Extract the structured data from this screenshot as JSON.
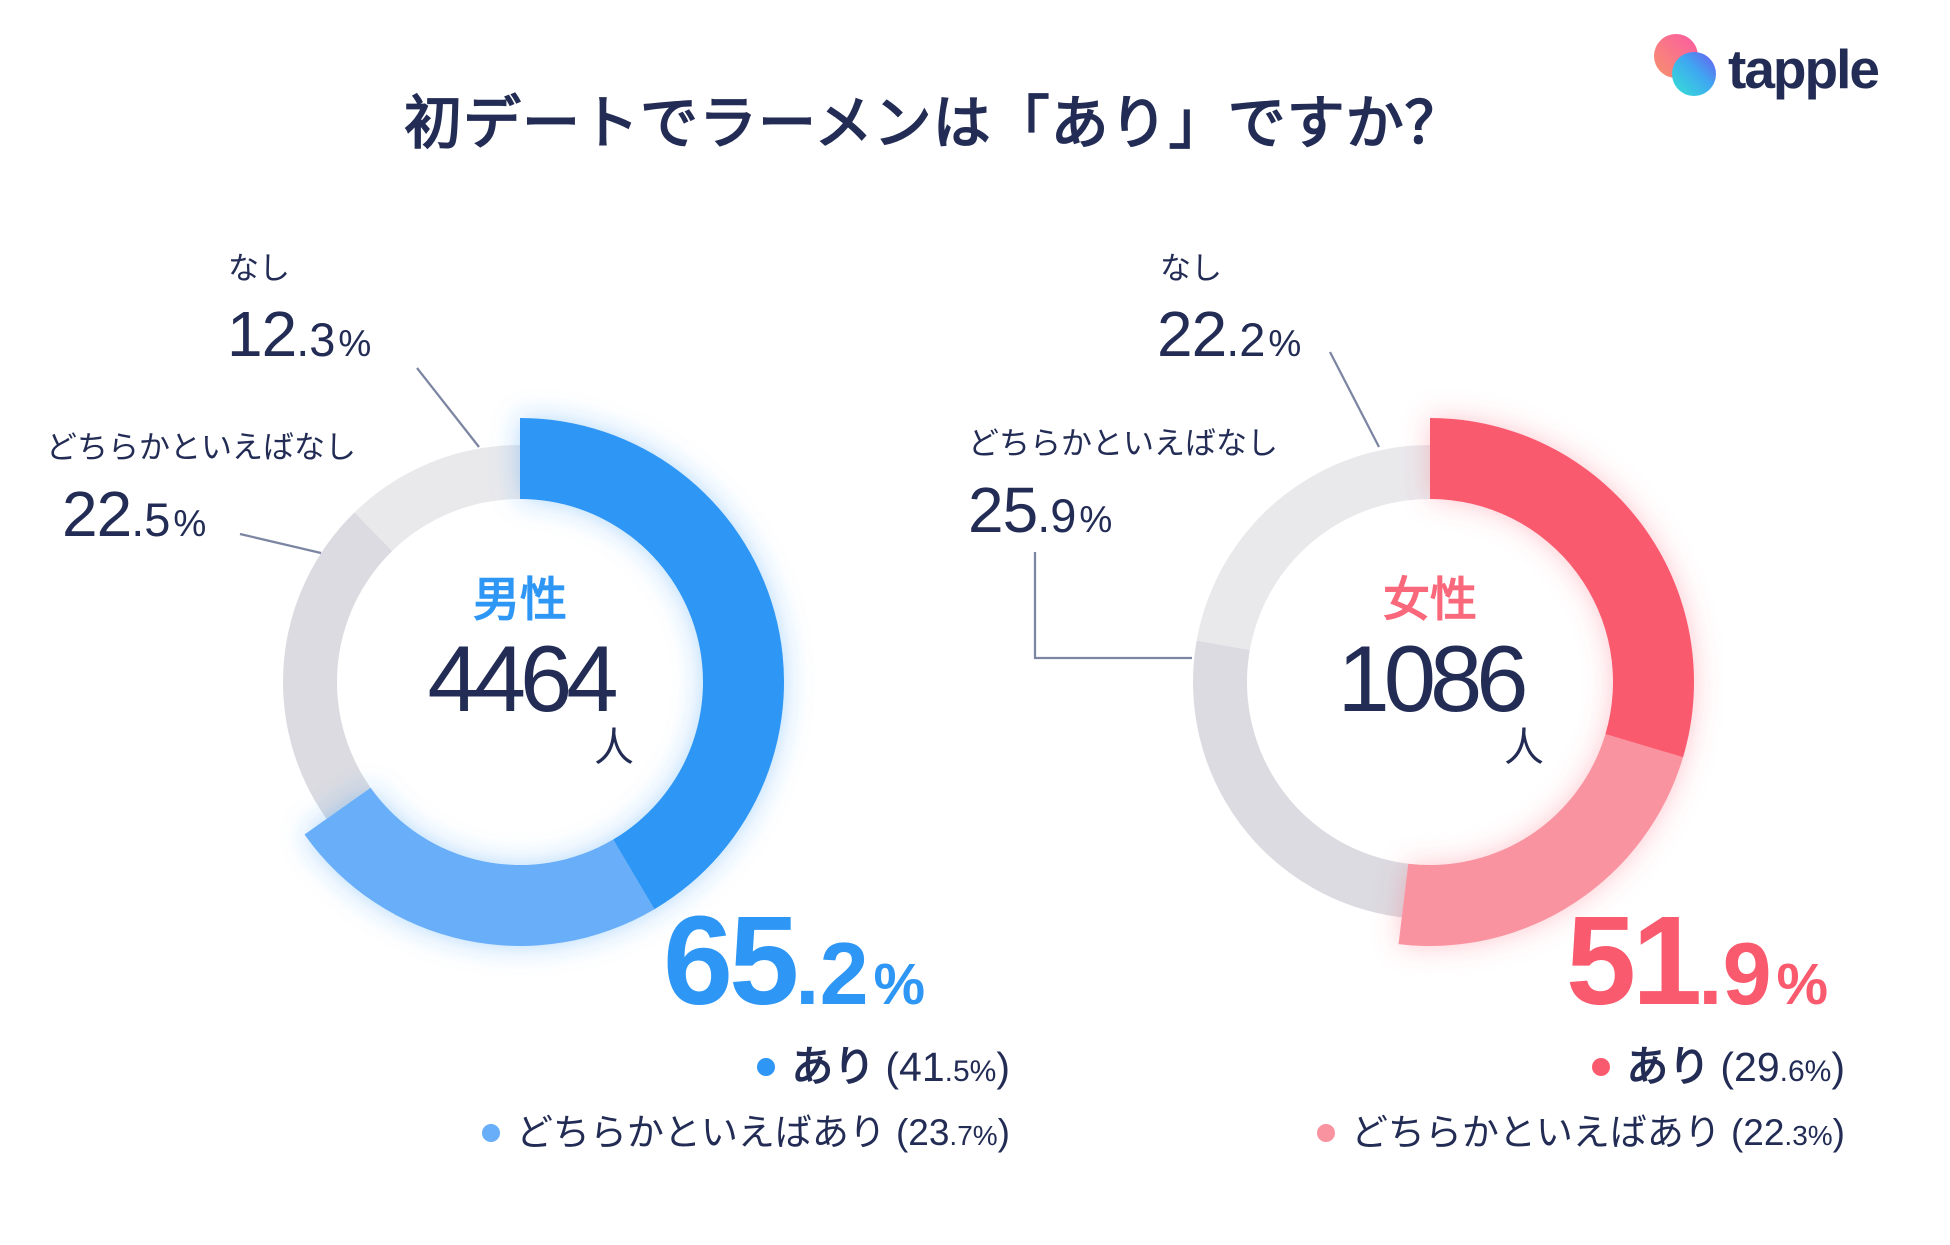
{
  "title": "初デートでラーメンは「あり」ですか？",
  "logo": {
    "text": "tapple"
  },
  "colors": {
    "text_navy": "#222C54",
    "leader_line": "#7C86A2",
    "male_accent": "#2E96F5",
    "male_accent_light": "#69AEF8",
    "female_accent": "#FA5A6E",
    "female_accent_light": "#FA93A0",
    "gray_nashi": "#E9E9EC",
    "gray_dochira_nashi": "#DBDBE1"
  },
  "chart_data": [
    {
      "type": "pie",
      "variant": "donut",
      "title": "男性",
      "total_respondents": 4464,
      "unit": "人",
      "highlight_total_pct": 65.2,
      "highlight_color": "#2E96F5",
      "labels": [
        "あり",
        "どちらかといえばあり",
        "どちらかといえばなし",
        "なし"
      ],
      "values": [
        41.5,
        23.7,
        22.5,
        12.3
      ],
      "colors": [
        "#2E96F5",
        "#69AEF8",
        "#DBDBE1",
        "#E9E9EC"
      ],
      "start_angle_deg": 0,
      "direction": "clockwise",
      "raised_segments": [
        0,
        1
      ]
    },
    {
      "type": "pie",
      "variant": "donut",
      "title": "女性",
      "total_respondents": 1086,
      "unit": "人",
      "highlight_total_pct": 51.9,
      "highlight_color": "#FA5A6E",
      "labels": [
        "あり",
        "どちらかといえばあり",
        "どちらかといえばなし",
        "なし"
      ],
      "values": [
        29.6,
        22.3,
        25.9,
        22.2
      ],
      "colors": [
        "#FA5A6E",
        "#FA93A0",
        "#DBDBE1",
        "#E9E9EC"
      ],
      "start_angle_deg": 0,
      "direction": "clockwise",
      "raised_segments": [
        0,
        1
      ]
    }
  ],
  "charts": [
    {
      "center": {
        "gender": "男性",
        "count": "4464",
        "unit": "人"
      },
      "total": {
        "main": "65",
        "dec": ".2",
        "pct": "%"
      },
      "callouts": [
        {
          "label": "なし",
          "main": "12",
          "dec": ".3",
          "pct": "%"
        },
        {
          "label": "どちらかといえばなし",
          "main": "22",
          "dec": ".5",
          "pct": "%"
        }
      ],
      "legend": [
        {
          "label": "あり",
          "p1": "(41",
          "p2": ".5%",
          "p3": ")"
        },
        {
          "label": "どちらかといえばあり",
          "p1": "(23",
          "p2": ".7%",
          "p3": ")"
        }
      ]
    },
    {
      "center": {
        "gender": "女性",
        "count": "1086",
        "unit": "人"
      },
      "total": {
        "main": "51",
        "dec": ".9",
        "pct": "%"
      },
      "callouts": [
        {
          "label": "なし",
          "main": "22",
          "dec": ".2",
          "pct": "%"
        },
        {
          "label": "どちらかといえばなし",
          "main": "25",
          "dec": ".9",
          "pct": "%"
        }
      ],
      "legend": [
        {
          "label": "あり",
          "p1": "(29",
          "p2": ".6%",
          "p3": ")"
        },
        {
          "label": "どちらかといえばあり",
          "p1": "(22",
          "p2": ".3%",
          "p3": ")"
        }
      ]
    }
  ]
}
